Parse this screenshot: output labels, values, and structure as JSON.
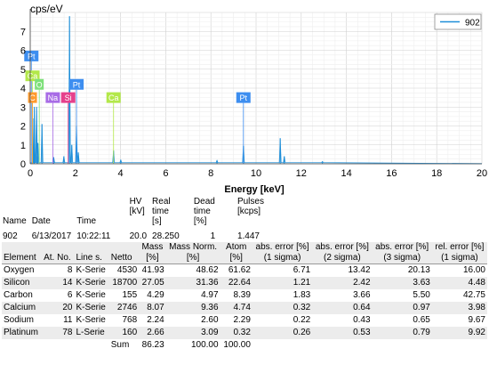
{
  "chart_data": {
    "type": "line",
    "ylabel": "cps/eV",
    "xlabel": "Energy [keV]",
    "xlim": [
      0,
      20
    ],
    "ylim": [
      0,
      8
    ],
    "xticks": [
      0,
      2,
      4,
      6,
      8,
      10,
      12,
      14,
      16,
      18,
      20
    ],
    "yticks": [
      0,
      1,
      2,
      3,
      4,
      5,
      6,
      7
    ],
    "legend": {
      "position": "top-right",
      "label": "902",
      "color": "#1f8fd8"
    },
    "series": [
      {
        "name": "902",
        "color": "#1f8fd8",
        "peaks": [
          {
            "x": 0.16,
            "y": 2.4
          },
          {
            "x": 0.18,
            "y": 3.0
          },
          {
            "x": 0.28,
            "y": 3.0
          },
          {
            "x": 0.34,
            "y": 1.1
          },
          {
            "x": 0.52,
            "y": 2.1
          },
          {
            "x": 1.04,
            "y": 0.35
          },
          {
            "x": 1.49,
            "y": 0.4
          },
          {
            "x": 1.74,
            "y": 7.8
          },
          {
            "x": 1.84,
            "y": 1.0
          },
          {
            "x": 2.05,
            "y": 2.0
          },
          {
            "x": 2.13,
            "y": 0.6
          },
          {
            "x": 3.69,
            "y": 0.7
          },
          {
            "x": 4.01,
            "y": 0.2
          },
          {
            "x": 8.27,
            "y": 0.18
          },
          {
            "x": 9.44,
            "y": 0.95
          },
          {
            "x": 11.07,
            "y": 1.35
          },
          {
            "x": 11.25,
            "y": 0.4
          },
          {
            "x": 12.94,
            "y": 0.12
          }
        ]
      }
    ],
    "element_labels": [
      {
        "text": "Pt",
        "x": 0.05,
        "y": 5.7,
        "color": "#3d8ef0"
      },
      {
        "text": "Ca",
        "x": 0.1,
        "y": 4.65,
        "color": "#b3e84a"
      },
      {
        "text": "O",
        "x": 0.4,
        "y": 4.2,
        "color": "#7ee07a"
      },
      {
        "text": "C",
        "x": 0.1,
        "y": 3.5,
        "color": "#ff9a2e"
      },
      {
        "text": "Na",
        "x": 1.0,
        "y": 3.5,
        "color": "#a86be6"
      },
      {
        "text": "Si",
        "x": 1.68,
        "y": 3.5,
        "color": "#e6408c"
      },
      {
        "text": "Pt",
        "x": 2.05,
        "y": 4.2,
        "color": "#3d8ef0"
      },
      {
        "text": "Ca",
        "x": 3.69,
        "y": 3.5,
        "color": "#b3e84a"
      },
      {
        "text": "Pt",
        "x": 9.44,
        "y": 3.5,
        "color": "#3d8ef0"
      }
    ]
  },
  "info": {
    "headers": [
      [
        "Name"
      ],
      [
        "Date"
      ],
      [
        "Time"
      ],
      [
        "HV",
        "[kV]"
      ],
      [
        "Real time",
        "[s]"
      ],
      [
        "Dead time",
        "[%]"
      ],
      [
        "Pulses",
        "[kcps]"
      ]
    ],
    "row": [
      "902",
      "6/13/2017",
      "10:22:11 AM",
      "20.0",
      "28.250",
      "1",
      "1.447"
    ]
  },
  "quant": {
    "headers": [
      [
        "Element"
      ],
      [
        "At. No."
      ],
      [
        "Line s."
      ],
      [
        "Netto"
      ],
      [
        "Mass",
        "[%]"
      ],
      [
        "Mass Norm.",
        "[%]"
      ],
      [
        "Atom",
        "[%]"
      ],
      [
        "abs. error [%]",
        "(1 sigma)"
      ],
      [
        "abs. error [%]",
        "(2 sigma)"
      ],
      [
        "abs. error [%]",
        "(3 sigma)"
      ],
      [
        "rel. error [%]",
        "(1 sigma)"
      ]
    ],
    "rows": [
      [
        "Oxygen",
        "8",
        "K-Serie",
        "4530",
        "41.93",
        "48.62",
        "61.62",
        "6.71",
        "13.42",
        "20.13",
        "16.00"
      ],
      [
        "Silicon",
        "14",
        "K-Serie",
        "18700",
        "27.05",
        "31.36",
        "22.64",
        "1.21",
        "2.42",
        "3.63",
        "4.48"
      ],
      [
        "Carbon",
        "6",
        "K-Serie",
        "155",
        "4.29",
        "4.97",
        "8.39",
        "1.83",
        "3.66",
        "5.50",
        "42.75"
      ],
      [
        "Calcium",
        "20",
        "K-Serie",
        "2746",
        "8.07",
        "9.36",
        "4.74",
        "0.32",
        "0.64",
        "0.97",
        "3.98"
      ],
      [
        "Sodium",
        "11",
        "K-Serie",
        "768",
        "2.24",
        "2.60",
        "2.29",
        "0.22",
        "0.43",
        "0.65",
        "9.67"
      ],
      [
        "Platinum",
        "78",
        "L-Serie",
        "160",
        "2.66",
        "3.09",
        "0.32",
        "0.26",
        "0.53",
        "0.79",
        "9.92"
      ]
    ],
    "sum": {
      "label": "Sum",
      "mass": "86.23",
      "mass_norm": "100.00",
      "atom": "100.00"
    }
  }
}
